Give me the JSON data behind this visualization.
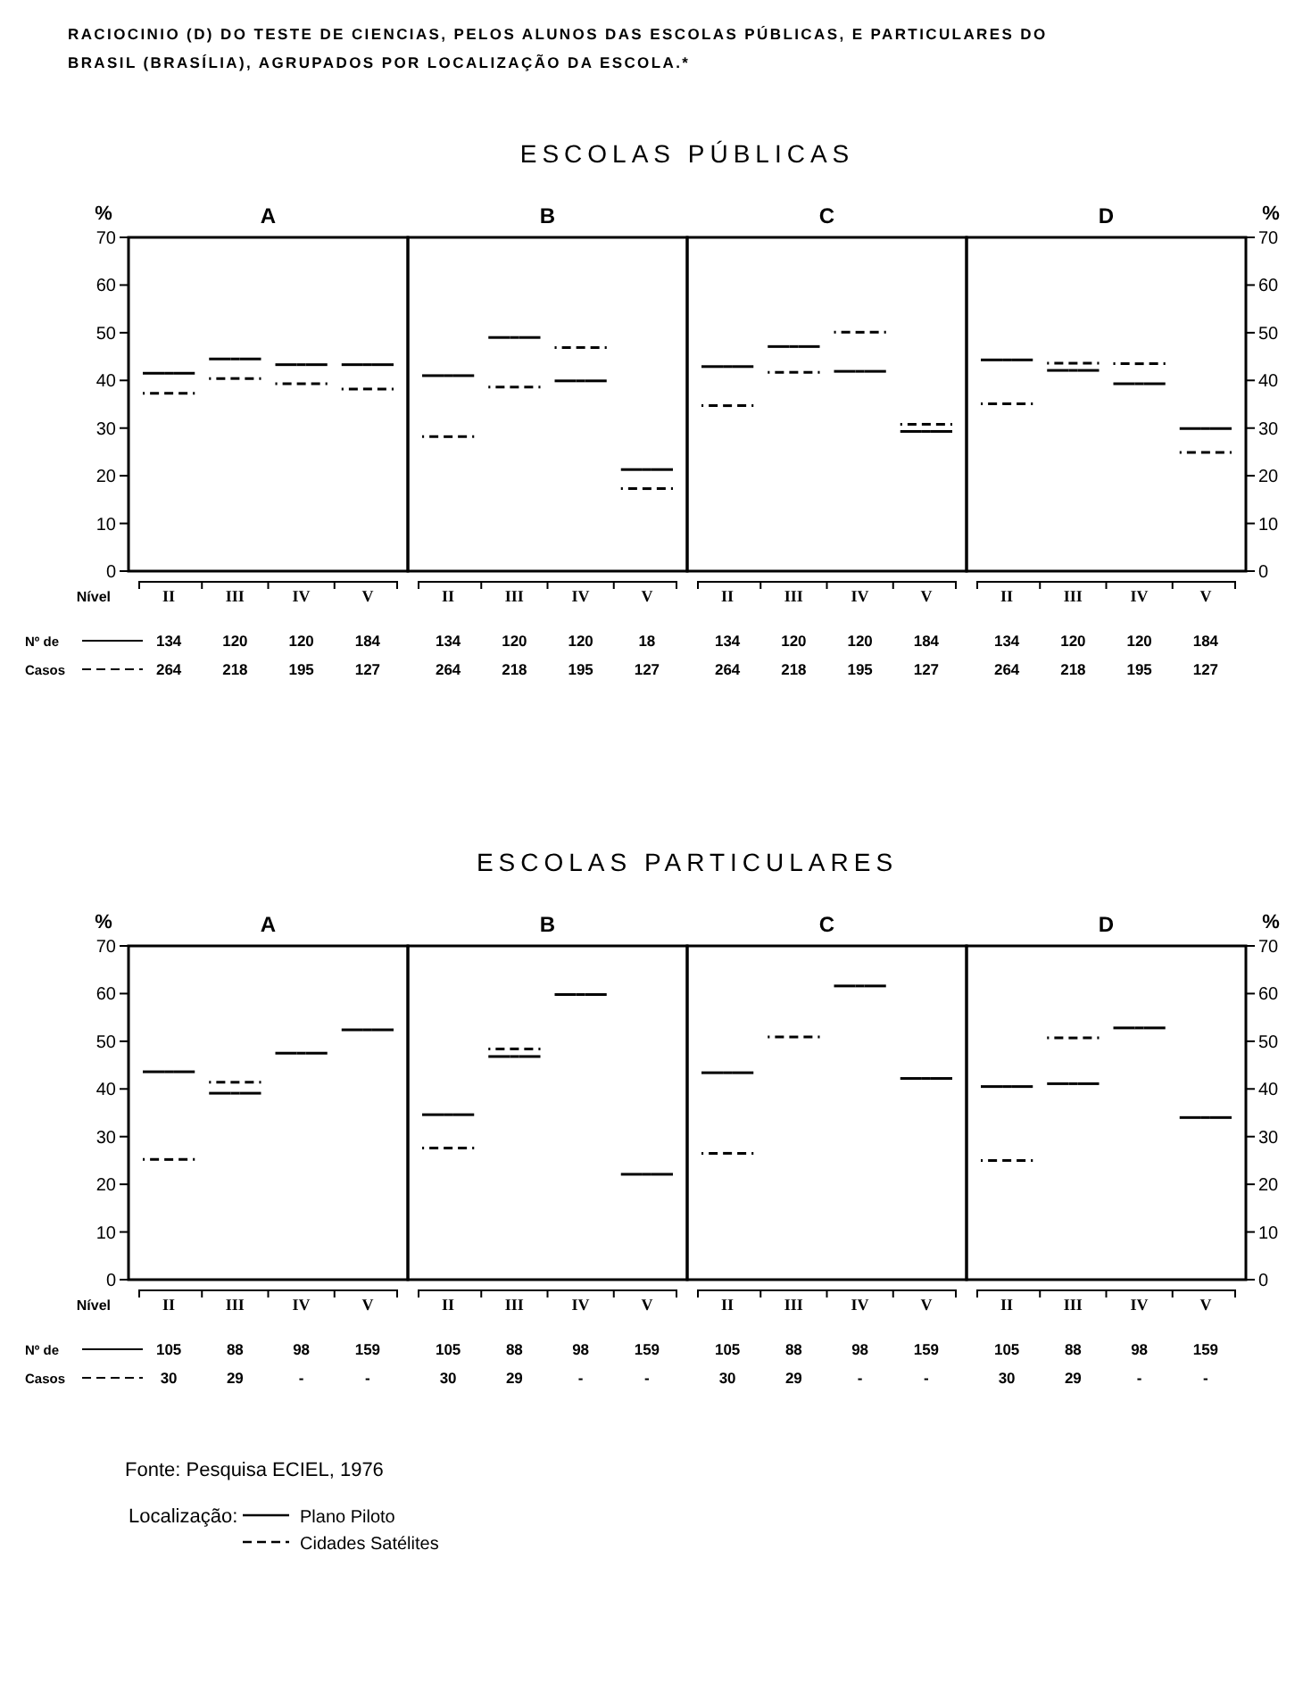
{
  "chart_data": [
    {
      "type": "other",
      "title": "RACIOCINIO (D) DO TESTE DE CIENCIAS, PELOS ALUNOS DAS ESCOLAS PÚBLICAS, E PARTICULARES DO BRASIL (BRASÍLIA), AGRUPADOS POR LOCALIZAÇÃO DA ESCOLA.*"
    },
    {
      "type": "other",
      "title": "ESCOLAS PÚBLICAS"
    },
    {
      "type": "scatter",
      "title": "A",
      "xlabel": "Nível",
      "ylabel": "%",
      "categories": [
        "II",
        "III",
        "IV",
        "V"
      ],
      "ylim": [
        0,
        70
      ],
      "yticks": [
        0,
        10,
        20,
        30,
        40,
        50,
        60,
        70
      ],
      "legend": false,
      "annotations": [
        "Nº de Casos",
        "134",
        "120",
        "120",
        "184",
        "264",
        "218",
        "195",
        "127"
      ],
      "series": [
        {
          "color": "#000000",
          "line_style": "solid",
          "values": [
            41.5,
            44.5,
            43.3,
            43.3
          ]
        },
        {
          "color": "#000000",
          "line_style": "dashed",
          "values": [
            37.3,
            40.4,
            39.3,
            38.2
          ]
        }
      ]
    },
    {
      "type": "scatter",
      "title": "B",
      "categories": [
        "II",
        "III",
        "IV",
        "V"
      ],
      "ylim": [
        0,
        70
      ],
      "tick_labels": "x",
      "legend": false,
      "annotations": [
        "134",
        "120",
        "120",
        "18",
        "264",
        "218",
        "195",
        "127"
      ],
      "series": [
        {
          "color": "#000000",
          "line_style": "solid",
          "values": [
            41,
            49,
            39.9,
            21.3
          ]
        },
        {
          "color": "#000000",
          "line_style": "dashed",
          "values": [
            28.2,
            38.6,
            46.9,
            17.3
          ]
        }
      ]
    },
    {
      "type": "scatter",
      "title": "C",
      "categories": [
        "II",
        "III",
        "IV",
        "V"
      ],
      "ylim": [
        0,
        70
      ],
      "tick_labels": "x",
      "legend": false,
      "annotations": [
        "134",
        "120",
        "120",
        "184",
        "264",
        "218",
        "195",
        "127"
      ],
      "series": [
        {
          "color": "#000000",
          "line_style": "solid",
          "values": [
            42.9,
            47.1,
            41.9,
            29.3
          ]
        },
        {
          "color": "#000000",
          "line_style": "dashed",
          "values": [
            34.7,
            41.7,
            50.1,
            30.8
          ]
        }
      ]
    },
    {
      "type": "scatter",
      "title": "D",
      "ylabel": "%",
      "categories": [
        "II",
        "III",
        "IV",
        "V"
      ],
      "ylim": [
        0,
        70
      ],
      "yticks": [
        0,
        10,
        20,
        30,
        40,
        50,
        60,
        70
      ],
      "legend": false,
      "annotations": [
        "134",
        "120",
        "120",
        "184",
        "264",
        "218",
        "195",
        "127"
      ],
      "series": [
        {
          "color": "#000000",
          "line_style": "solid",
          "values": [
            44.3,
            42.1,
            39.3,
            29.9
          ]
        },
        {
          "color": "#000000",
          "line_style": "dashed",
          "values": [
            35.1,
            43.6,
            43.5,
            24.9
          ]
        }
      ]
    },
    {
      "type": "other",
      "title": "ESCOLAS PARTICULARES"
    },
    {
      "type": "scatter",
      "title": "A",
      "xlabel": "Nível",
      "ylabel": "%",
      "categories": [
        "II",
        "III",
        "IV",
        "V"
      ],
      "ylim": [
        0,
        70
      ],
      "yticks": [
        0,
        10,
        20,
        30,
        40,
        50,
        60,
        70
      ],
      "legend": false,
      "annotations": [
        "Nº de Casos",
        "105",
        "88",
        "98",
        "159",
        "30",
        "29",
        "-",
        "-"
      ],
      "series": [
        {
          "color": "#000000",
          "line_style": "solid",
          "values": [
            43.6,
            39.1,
            47.5,
            52.4
          ]
        },
        {
          "color": "#000000",
          "line_style": "dashed",
          "values": [
            25.2,
            41.4,
            null,
            null
          ]
        }
      ]
    },
    {
      "type": "scatter",
      "title": "B",
      "categories": [
        "II",
        "III",
        "IV",
        "V"
      ],
      "ylim": [
        0,
        70
      ],
      "tick_labels": "x",
      "legend": false,
      "annotations": [
        "105",
        "88",
        "98",
        "159",
        "30",
        "29",
        "-",
        "-"
      ],
      "series": [
        {
          "color": "#000000",
          "line_style": "solid",
          "values": [
            34.6,
            46.8,
            59.8,
            22.1
          ]
        },
        {
          "color": "#000000",
          "line_style": "dashed",
          "values": [
            27.6,
            48.4,
            null,
            null
          ]
        }
      ]
    },
    {
      "type": "scatter",
      "title": "C",
      "categories": [
        "II",
        "III",
        "IV",
        "V"
      ],
      "ylim": [
        0,
        70
      ],
      "tick_labels": "x",
      "legend": false,
      "annotations": [
        "105",
        "88",
        "98",
        "159",
        "30",
        "29",
        "-",
        "-"
      ],
      "series": [
        {
          "color": "#000000",
          "line_style": "solid",
          "values": [
            43.4,
            null,
            61.6,
            42.2
          ]
        },
        {
          "color": "#000000",
          "line_style": "dashed",
          "values": [
            26.5,
            50.9,
            null,
            null
          ]
        }
      ]
    },
    {
      "type": "scatter",
      "title": "D",
      "ylabel": "%",
      "categories": [
        "II",
        "III",
        "IV",
        "V"
      ],
      "ylim": [
        0,
        70
      ],
      "yticks": [
        0,
        10,
        20,
        30,
        40,
        50,
        60,
        70
      ],
      "legend": "bottom",
      "legend_title": "Localização:",
      "annotations": [
        "105",
        "88",
        "98",
        "159",
        "30",
        "29",
        "-",
        "-"
      ],
      "series": [
        {
          "name": "Plano Piloto",
          "color": "#000000",
          "line_style": "solid",
          "values": [
            40.5,
            41.1,
            52.8,
            34
          ]
        },
        {
          "name": "Cidades Satélites",
          "color": "#000000",
          "line_style": "dashed",
          "values": [
            25,
            50.7,
            null,
            null
          ]
        }
      ]
    },
    {
      "type": "other",
      "annotations": [
        "Fonte: Pesquisa ECIEL, 1976"
      ]
    }
  ]
}
